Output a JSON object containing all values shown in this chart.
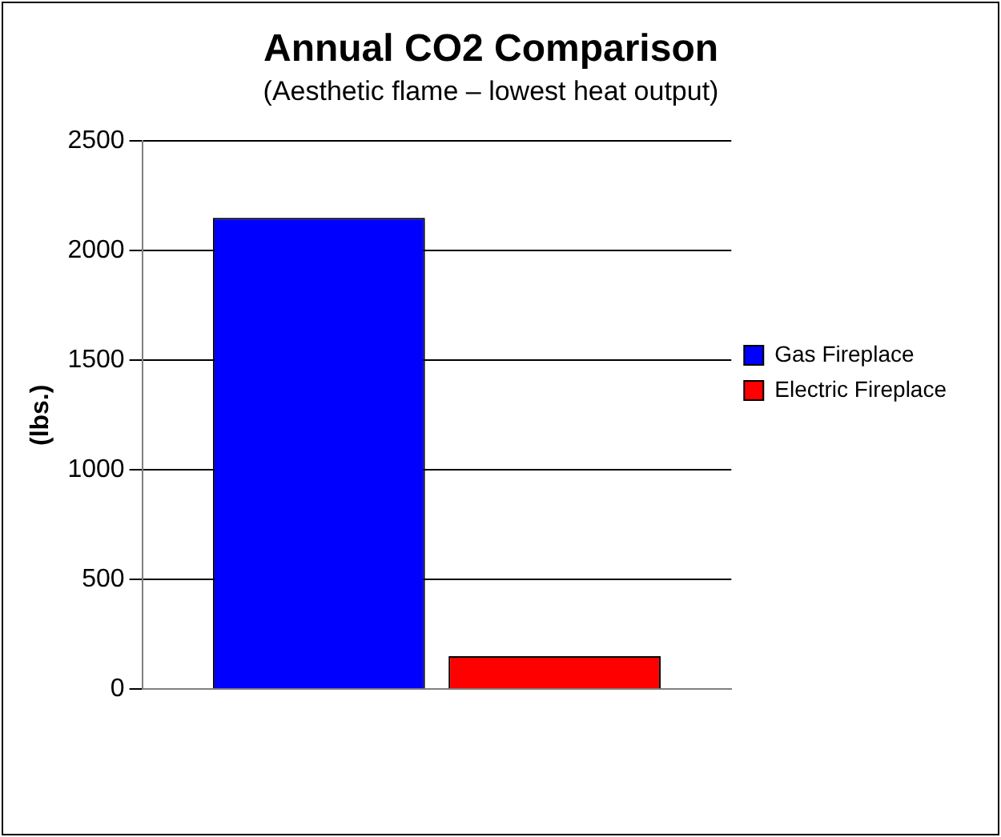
{
  "chart_data": {
    "type": "bar",
    "title": "Annual CO2 Comparison",
    "subtitle": "(Aesthetic flame – lowest heat output)",
    "ylabel": "(lbs.)",
    "categories": [
      null
    ],
    "series": [
      {
        "name": "Gas Fireplace",
        "color": "#0000ff",
        "values": [
          2150
        ]
      },
      {
        "name": "Electric Fireplace",
        "color": "#ff0000",
        "values": [
          150
        ]
      }
    ],
    "ylim": [
      0,
      2500
    ],
    "yticks": [
      0,
      500,
      1000,
      1500,
      2000,
      2500
    ],
    "grid": "y",
    "legend": "right"
  }
}
